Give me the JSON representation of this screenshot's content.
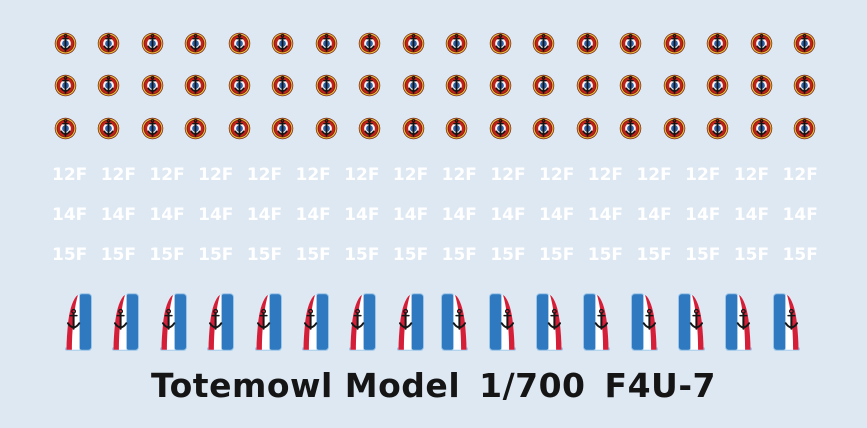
{
  "sheet": {
    "background_color": "#dee8f3",
    "title": {
      "brand": "Totemowl Model",
      "scale": "1/700",
      "aircraft": "F4U-7"
    },
    "roundels": {
      "rows": 3,
      "per_row": 18,
      "colors": {
        "outer_ring_yellow": "#eab73a",
        "ring_red": "#c22018",
        "ring_dark_edge": "#6e1a10",
        "inner_white": "#f8f5f1",
        "center_blue": "#2c62ab",
        "anchor_black": "#161616"
      }
    },
    "squadron_codes": {
      "labels": [
        "12F",
        "14F",
        "15F"
      ],
      "per_row": 16,
      "text_color": "#ffffff"
    },
    "fin_flashes": {
      "left_facing_count": 8,
      "right_facing_count": 8,
      "colors": {
        "blue": "#2e79c0",
        "white": "#ffffff",
        "red": "#d51f38",
        "outline_light_blue": "#9cc6e8",
        "anchor_black": "#161616"
      }
    }
  }
}
